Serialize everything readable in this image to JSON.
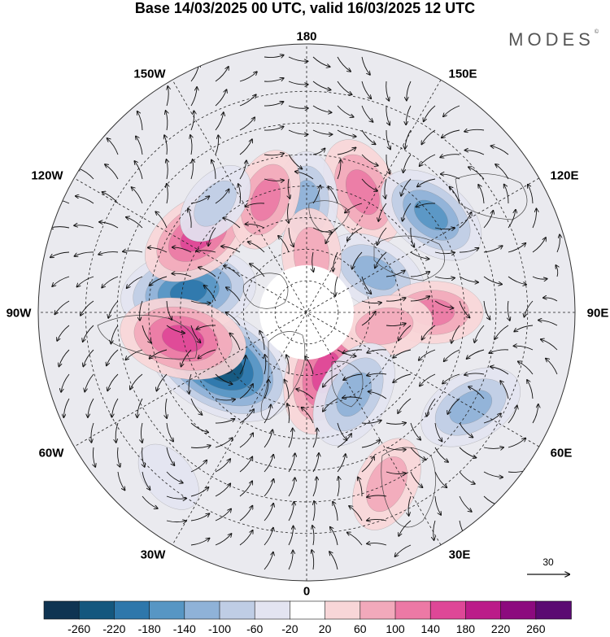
{
  "title": "Base 14/03/2025 00 UTC, valid 16/03/2025 12 UTC",
  "brand": "MODES",
  "brand_mark": "©",
  "longitude_labels": {
    "top": "180",
    "bottom": "0",
    "left": "90W",
    "right": "90E",
    "upper_left_1": "150W",
    "upper_left_2": "120W",
    "upper_right_1": "150E",
    "upper_right_2": "120E",
    "lower_left_1": "60W",
    "lower_left_2": "30W",
    "lower_right_1": "60E",
    "lower_right_2": "30E"
  },
  "reference_vector": "30",
  "colorbar": {
    "ticks": [
      "-260",
      "-220",
      "-180",
      "-140",
      "-100",
      "-60",
      "-20",
      "20",
      "60",
      "100",
      "140",
      "180",
      "220",
      "260"
    ],
    "colors": [
      "#0f3452",
      "#14577e",
      "#2e77ab",
      "#5796c4",
      "#8fb2d8",
      "#bfcde5",
      "#e3e4f1",
      "#ffffff",
      "#f8d6d8",
      "#f2a9bb",
      "#ec79a5",
      "#de4797",
      "#bb1c89",
      "#8c0a7e",
      "#5b0a72"
    ]
  },
  "anomaly_centers": [
    {
      "lon": -60,
      "lat": 58,
      "value": -265
    },
    {
      "lon": -100,
      "lat": 52,
      "value": -200
    },
    {
      "lon": 18,
      "lat": 70,
      "value": 175
    },
    {
      "lon": -78,
      "lat": 50,
      "value": 175
    },
    {
      "lon": -125,
      "lat": 48,
      "value": 150
    },
    {
      "lon": 155,
      "lat": 48,
      "value": 130
    },
    {
      "lon": 180,
      "lat": 55,
      "value": -100
    },
    {
      "lon": -160,
      "lat": 52,
      "value": 105
    },
    {
      "lon": 128,
      "lat": 40,
      "value": -140
    },
    {
      "lon": 120,
      "lat": 65,
      "value": -120
    },
    {
      "lon": 90,
      "lat": 50,
      "value": 100
    },
    {
      "lon": 80,
      "lat": 65,
      "value": 90
    },
    {
      "lon": 60,
      "lat": 30,
      "value": -120
    },
    {
      "lon": 30,
      "lat": 60,
      "value": -130
    },
    {
      "lon": 25,
      "lat": 30,
      "value": 90
    },
    {
      "lon": -140,
      "lat": 45,
      "value": -65
    },
    {
      "lon": 175,
      "lat": 72,
      "value": 85
    },
    {
      "lon": -40,
      "lat": 22,
      "value": -30
    }
  ]
}
